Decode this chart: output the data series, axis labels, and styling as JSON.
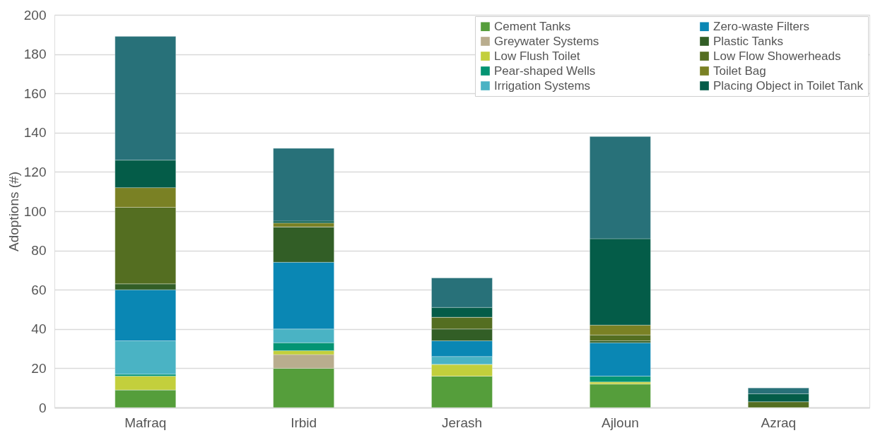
{
  "chart_data": {
    "type": "bar",
    "stacked": true,
    "ylabel": "Adoptions (#)",
    "categories": [
      "Mafraq",
      "Irbid",
      "Jerash",
      "Ajloun",
      "Azraq"
    ],
    "ylim": [
      0,
      200
    ],
    "yticks": [
      0,
      20,
      40,
      60,
      80,
      100,
      120,
      140,
      160,
      180,
      200
    ],
    "grid": "y",
    "legend": "top right",
    "series": [
      {
        "name": "Cement Tanks",
        "color": "#559e3b",
        "values": [
          9,
          20,
          16,
          12,
          0
        ]
      },
      {
        "name": "Greywater Systems",
        "color": "#b9ad8e",
        "values": [
          0,
          7,
          0,
          0,
          0
        ]
      },
      {
        "name": "Low Flush Toilet",
        "color": "#c3cf3c",
        "values": [
          7,
          2,
          6,
          1,
          0
        ]
      },
      {
        "name": "Pear-shaped Wells",
        "color": "#049473",
        "values": [
          1,
          4,
          0,
          3,
          0
        ]
      },
      {
        "name": "Irrigation Systems",
        "color": "#4ab3c4",
        "values": [
          17,
          7,
          4,
          0,
          0
        ]
      },
      {
        "name": "Zero-waste Filters",
        "color": "#0a87b4",
        "values": [
          26,
          34,
          8,
          17,
          0
        ]
      },
      {
        "name": "Plastic Tanks",
        "color": "#325e26",
        "values": [
          3,
          18,
          6,
          1,
          0
        ]
      },
      {
        "name": "Low Flow Showerheads",
        "color": "#546e21",
        "values": [
          39,
          0,
          6,
          3,
          3
        ]
      },
      {
        "name": "Toilet Bag",
        "color": "#7a8124",
        "values": [
          10,
          2,
          0,
          5,
          0
        ]
      },
      {
        "name": "Placing Object in Toilet Tank",
        "color": "#045c48",
        "values": [
          14,
          1,
          5,
          44,
          4
        ]
      },
      {
        "color": "#287179",
        "values": [
          63,
          37,
          15,
          52,
          3
        ]
      }
    ]
  }
}
